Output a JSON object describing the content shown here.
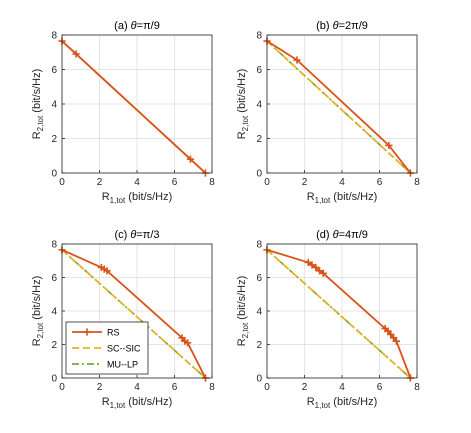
{
  "colors": {
    "rs": "#D95319",
    "sc_sic": "#EDB120",
    "mu_lp": "#77AC30",
    "grid": "#dcdcdc",
    "axis": "#262626"
  },
  "legend": [
    {
      "key": "rs",
      "label": "RS",
      "style": "solid-marker"
    },
    {
      "key": "sc_sic",
      "label": "SC--SIC",
      "style": "dashed"
    },
    {
      "key": "mu_lp",
      "label": "MU--LP",
      "style": "dashdot"
    }
  ],
  "chart_data": [
    {
      "type": "line",
      "title": "(a) θ=π/9",
      "xlabel": "R",
      "xlabel_sub": "1,tot",
      "xlabel_unit": " (bit/s/Hz)",
      "ylabel": "R",
      "ylabel_sub": "2,tot",
      "ylabel_unit": " (bit/s/Hz)",
      "xlim": [
        0,
        8
      ],
      "ylim": [
        0,
        8
      ],
      "xticks": [
        "0",
        "2",
        "4",
        "6",
        "8"
      ],
      "yticks": [
        "0",
        "2",
        "4",
        "6",
        "8"
      ],
      "grid": true,
      "series": [
        {
          "key": "rs",
          "points": [
            [
              0,
              7.65
            ],
            [
              0.75,
              6.9
            ],
            [
              6.85,
              0.8
            ],
            [
              7.65,
              0
            ]
          ]
        },
        {
          "key": "sc_sic",
          "points": [
            [
              0,
              7.65
            ],
            [
              7.65,
              0
            ]
          ]
        },
        {
          "key": "mu_lp",
          "points": [
            [
              0,
              7.65
            ],
            [
              7.65,
              0
            ]
          ]
        }
      ]
    },
    {
      "type": "line",
      "title": "(b) θ=2π/9",
      "xlabel": "R",
      "xlabel_sub": "1,tot",
      "xlabel_unit": " (bit/s/Hz)",
      "ylabel": "R",
      "ylabel_sub": "2,tot",
      "ylabel_unit": " (bit/s/Hz)",
      "xlim": [
        0,
        8
      ],
      "ylim": [
        0,
        8
      ],
      "xticks": [
        "0",
        "2",
        "4",
        "6",
        "8"
      ],
      "yticks": [
        "0",
        "2",
        "4",
        "6",
        "8"
      ],
      "grid": true,
      "series": [
        {
          "key": "rs",
          "points": [
            [
              0,
              7.65
            ],
            [
              1.6,
              6.55
            ],
            [
              6.5,
              1.6
            ],
            [
              7.65,
              0
            ]
          ]
        },
        {
          "key": "sc_sic",
          "points": [
            [
              0,
              7.65
            ],
            [
              7.65,
              0
            ]
          ]
        },
        {
          "key": "mu_lp",
          "points": [
            [
              0,
              7.65
            ],
            [
              7.65,
              0
            ]
          ]
        }
      ]
    },
    {
      "type": "line",
      "title": "(c) θ=π/3",
      "xlabel": "R",
      "xlabel_sub": "1,tot",
      "xlabel_unit": " (bit/s/Hz)",
      "ylabel": "R",
      "ylabel_sub": "2,tot",
      "ylabel_unit": " (bit/s/Hz)",
      "xlim": [
        0,
        8
      ],
      "ylim": [
        0,
        8
      ],
      "xticks": [
        "0",
        "2",
        "4",
        "6",
        "8"
      ],
      "yticks": [
        "0",
        "2",
        "4",
        "6",
        "8"
      ],
      "grid": true,
      "series": [
        {
          "key": "rs",
          "points": [
            [
              0,
              7.65
            ],
            [
              2.1,
              6.6
            ],
            [
              2.25,
              6.5
            ],
            [
              2.4,
              6.4
            ],
            [
              6.4,
              2.4
            ],
            [
              6.55,
              2.2
            ],
            [
              6.7,
              2.1
            ],
            [
              7.65,
              0
            ]
          ]
        },
        {
          "key": "sc_sic",
          "points": [
            [
              0,
              7.65
            ],
            [
              7.65,
              0
            ]
          ]
        },
        {
          "key": "mu_lp",
          "points": [
            [
              0,
              7.65
            ],
            [
              7.65,
              0
            ]
          ]
        }
      ]
    },
    {
      "type": "line",
      "title": "(d) θ=4π/9",
      "xlabel": "R",
      "xlabel_sub": "1,tot",
      "xlabel_unit": " (bit/s/Hz)",
      "ylabel": "R",
      "ylabel_sub": "2,tot",
      "ylabel_unit": " (bit/s/Hz)",
      "xlim": [
        0,
        8
      ],
      "ylim": [
        0,
        8
      ],
      "xticks": [
        "0",
        "2",
        "4",
        "6",
        "8"
      ],
      "yticks": [
        "0",
        "2",
        "4",
        "6",
        "8"
      ],
      "grid": true,
      "series": [
        {
          "key": "rs",
          "points": [
            [
              0,
              7.65
            ],
            [
              2.2,
              6.9
            ],
            [
              2.4,
              6.75
            ],
            [
              2.6,
              6.6
            ],
            [
              2.8,
              6.4
            ],
            [
              3.0,
              6.25
            ],
            [
              6.3,
              2.95
            ],
            [
              6.45,
              2.8
            ],
            [
              6.6,
              2.6
            ],
            [
              6.75,
              2.4
            ],
            [
              6.9,
              2.2
            ],
            [
              7.65,
              0
            ]
          ]
        },
        {
          "key": "sc_sic",
          "points": [
            [
              0,
              7.65
            ],
            [
              7.65,
              0
            ]
          ]
        },
        {
          "key": "mu_lp",
          "points": [
            [
              0,
              7.65
            ],
            [
              7.65,
              0
            ]
          ]
        }
      ]
    }
  ]
}
